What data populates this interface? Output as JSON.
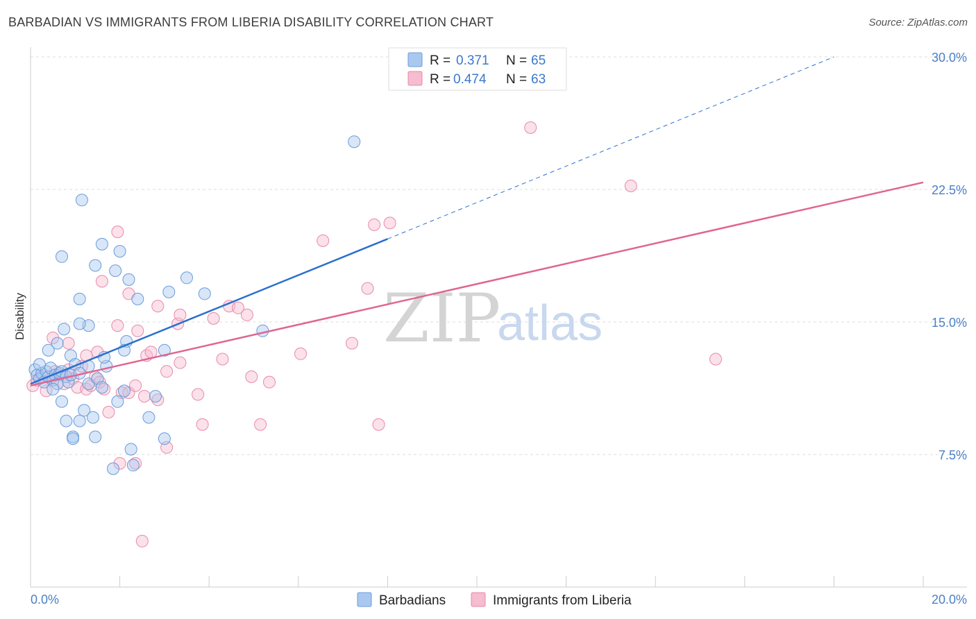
{
  "header": {
    "title": "BARBADIAN VS IMMIGRANTS FROM LIBERIA DISABILITY CORRELATION CHART",
    "source": "Source: ZipAtlas.com"
  },
  "watermark": {
    "zip": "ZIP",
    "atlas": "atlas"
  },
  "colors": {
    "blue_fill": "#a9c8f0",
    "blue_stroke": "#6a9bd8",
    "blue_line": "#2b6fcf",
    "pink_fill": "#f6bcd0",
    "pink_stroke": "#e889a9",
    "pink_line": "#e06590",
    "grid": "#dddddd"
  },
  "chart_data": {
    "type": "scatter",
    "title": "BARBADIAN VS IMMIGRANTS FROM LIBERIA DISABILITY CORRELATION CHART",
    "xlabel": "",
    "ylabel": "Disability",
    "xlim": [
      0,
      20
    ],
    "ylim": [
      0,
      31
    ],
    "x_tick_labels": [
      "0.0%",
      "20.0%"
    ],
    "y_ticks": [
      7.5,
      15.0,
      22.5,
      30.0
    ],
    "y_tick_labels": [
      "7.5%",
      "15.0%",
      "22.5%",
      "30.0%"
    ],
    "grid": true,
    "legend": {
      "placement": "top-center",
      "entries": [
        {
          "r_label": "R =",
          "r_value": "0.371",
          "n_label": "N =",
          "n_value": "65"
        },
        {
          "r_label": "R =",
          "r_value": "0.474",
          "n_label": "N =",
          "n_value": "63"
        }
      ]
    },
    "bottom_legend": [
      "Barbadians",
      "Immigrants from Liberia"
    ],
    "series": [
      {
        "name": "Barbadians",
        "trend": {
          "x0": 0,
          "y0": 11.5,
          "x1": 8,
          "y1": 19.7,
          "dash_to_x": 18,
          "dash_to_y": 30.0
        },
        "points": [
          [
            0.1,
            12.3
          ],
          [
            0.15,
            12.0
          ],
          [
            0.2,
            11.8
          ],
          [
            0.25,
            12.1
          ],
          [
            0.3,
            11.6
          ],
          [
            0.35,
            12.2
          ],
          [
            0.4,
            11.9
          ],
          [
            0.45,
            12.4
          ],
          [
            0.5,
            11.7
          ],
          [
            0.55,
            12.0
          ],
          [
            0.6,
            11.5
          ],
          [
            0.65,
            12.1
          ],
          [
            0.7,
            12.2
          ],
          [
            0.8,
            11.9
          ],
          [
            0.85,
            11.6
          ],
          [
            0.9,
            12.0
          ],
          [
            0.2,
            12.6
          ],
          [
            0.4,
            13.4
          ],
          [
            0.6,
            13.8
          ],
          [
            0.75,
            14.6
          ],
          [
            0.9,
            13.1
          ],
          [
            1.0,
            12.6
          ],
          [
            1.1,
            12.1
          ],
          [
            1.3,
            12.5
          ],
          [
            1.2,
            10.0
          ],
          [
            1.3,
            11.5
          ],
          [
            1.5,
            11.8
          ],
          [
            1.6,
            11.3
          ],
          [
            1.7,
            12.5
          ],
          [
            1.65,
            13.0
          ],
          [
            0.5,
            11.2
          ],
          [
            0.7,
            10.5
          ],
          [
            1.1,
            9.4
          ],
          [
            1.4,
            9.6
          ],
          [
            1.45,
            8.5
          ],
          [
            0.8,
            9.4
          ],
          [
            0.95,
            8.5
          ],
          [
            0.95,
            8.4
          ],
          [
            1.85,
            6.7
          ],
          [
            2.3,
            6.9
          ],
          [
            2.25,
            7.8
          ],
          [
            3.0,
            8.4
          ],
          [
            2.65,
            9.6
          ],
          [
            2.1,
            11.1
          ],
          [
            1.95,
            10.5
          ],
          [
            2.15,
            13.9
          ],
          [
            2.1,
            13.4
          ],
          [
            2.4,
            16.3
          ],
          [
            2.8,
            10.8
          ],
          [
            3.0,
            13.4
          ],
          [
            3.1,
            16.7
          ],
          [
            3.5,
            17.5
          ],
          [
            3.9,
            16.6
          ],
          [
            1.3,
            14.8
          ],
          [
            1.1,
            14.9
          ],
          [
            1.1,
            16.3
          ],
          [
            1.45,
            18.2
          ],
          [
            1.6,
            19.4
          ],
          [
            1.9,
            17.9
          ],
          [
            2.0,
            19.0
          ],
          [
            2.2,
            17.4
          ],
          [
            0.7,
            18.7
          ],
          [
            1.15,
            21.9
          ],
          [
            7.25,
            25.2
          ],
          [
            5.2,
            14.5
          ]
        ]
      },
      {
        "name": "Immigrants from Liberia",
        "trend": {
          "x0": 0,
          "y0": 11.4,
          "x1": 20,
          "y1": 22.9
        },
        "points": [
          [
            0.05,
            11.4
          ],
          [
            0.15,
            11.7
          ],
          [
            0.25,
            11.9
          ],
          [
            0.35,
            11.1
          ],
          [
            0.45,
            11.8
          ],
          [
            0.55,
            12.2
          ],
          [
            0.65,
            12.0
          ],
          [
            0.75,
            11.5
          ],
          [
            0.85,
            12.3
          ],
          [
            0.95,
            11.8
          ],
          [
            1.05,
            11.3
          ],
          [
            1.15,
            12.5
          ],
          [
            1.25,
            11.2
          ],
          [
            1.35,
            11.4
          ],
          [
            1.45,
            11.9
          ],
          [
            1.55,
            11.6
          ],
          [
            1.65,
            11.2
          ],
          [
            1.75,
            9.9
          ],
          [
            2.05,
            11.0
          ],
          [
            2.2,
            11.0
          ],
          [
            2.35,
            11.4
          ],
          [
            2.55,
            10.8
          ],
          [
            2.85,
            10.6
          ],
          [
            3.05,
            12.2
          ],
          [
            3.35,
            12.7
          ],
          [
            3.75,
            10.9
          ],
          [
            3.85,
            9.2
          ],
          [
            4.1,
            15.2
          ],
          [
            4.3,
            12.9
          ],
          [
            4.45,
            15.9
          ],
          [
            4.65,
            15.8
          ],
          [
            4.85,
            15.4
          ],
          [
            4.95,
            11.9
          ],
          [
            5.15,
            9.2
          ],
          [
            5.35,
            11.6
          ],
          [
            6.05,
            13.2
          ],
          [
            6.55,
            19.6
          ],
          [
            7.2,
            13.8
          ],
          [
            7.55,
            16.9
          ],
          [
            7.7,
            20.5
          ],
          [
            7.8,
            9.2
          ],
          [
            8.05,
            20.6
          ],
          [
            11.2,
            26.0
          ],
          [
            13.45,
            22.7
          ],
          [
            15.35,
            12.9
          ],
          [
            0.5,
            14.1
          ],
          [
            0.85,
            13.8
          ],
          [
            1.25,
            13.1
          ],
          [
            1.5,
            13.3
          ],
          [
            1.6,
            17.3
          ],
          [
            1.95,
            14.8
          ],
          [
            1.95,
            20.1
          ],
          [
            2.2,
            16.6
          ],
          [
            2.4,
            14.5
          ],
          [
            2.6,
            13.1
          ],
          [
            2.7,
            13.3
          ],
          [
            2.85,
            15.9
          ],
          [
            3.3,
            14.9
          ],
          [
            3.35,
            15.4
          ],
          [
            2.0,
            7.0
          ],
          [
            2.35,
            7.0
          ],
          [
            3.05,
            7.9
          ],
          [
            2.5,
            2.6
          ]
        ]
      }
    ]
  }
}
